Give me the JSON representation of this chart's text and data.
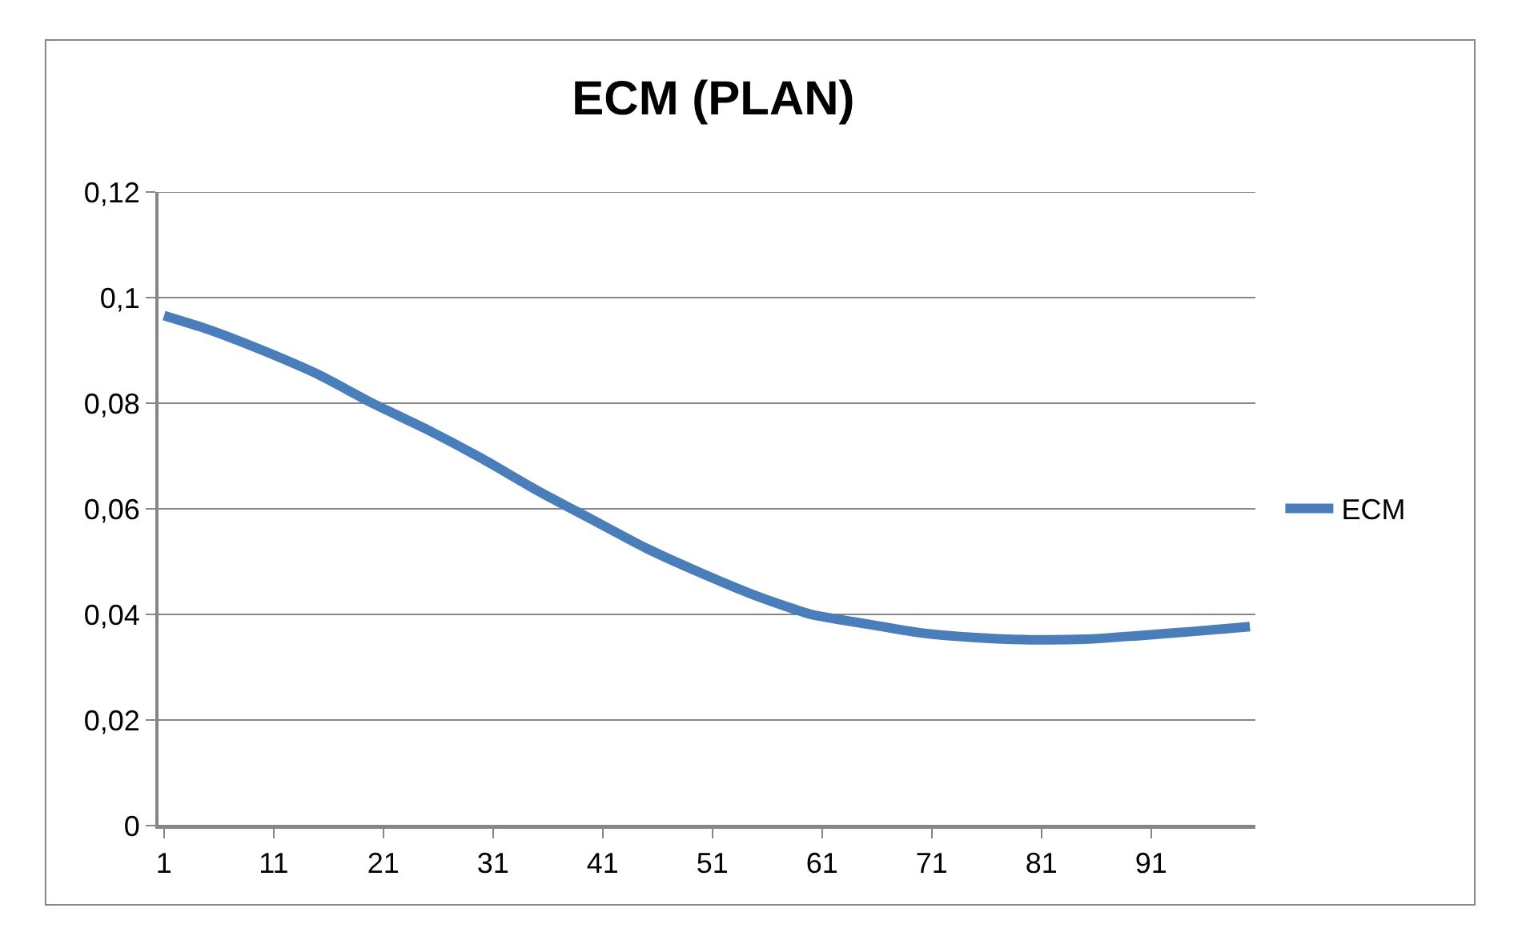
{
  "chart_data": {
    "type": "line",
    "title": "ECM (PLAN)",
    "x": [
      1,
      5,
      10,
      15,
      20,
      25,
      30,
      35,
      40,
      45,
      50,
      55,
      60,
      65,
      70,
      75,
      80,
      85,
      90,
      95,
      100
    ],
    "series": [
      {
        "name": "ECM",
        "color": "#4a7ebb",
        "values": [
          0.0966,
          0.094,
          0.09,
          0.0855,
          0.08,
          0.075,
          0.0695,
          0.0635,
          0.058,
          0.0525,
          0.0478,
          0.0435,
          0.04,
          0.0382,
          0.0365,
          0.0356,
          0.0352,
          0.0353,
          0.036,
          0.0368,
          0.0377
        ]
      }
    ],
    "xlim": [
      0.5,
      100.5
    ],
    "xticks": [
      1,
      11,
      21,
      31,
      41,
      51,
      61,
      71,
      81,
      91
    ],
    "ylim": [
      0,
      0.12
    ],
    "yticks": [
      {
        "value": 0,
        "label": "0"
      },
      {
        "value": 0.02,
        "label": "0,02"
      },
      {
        "value": 0.04,
        "label": "0,04"
      },
      {
        "value": 0.06,
        "label": "0,06"
      },
      {
        "value": 0.08,
        "label": "0,08"
      },
      {
        "value": 0.1,
        "label": "0,1"
      },
      {
        "value": 0.12,
        "label": "0,12"
      }
    ],
    "grid": "y",
    "legend": "right",
    "marker": "none",
    "line_style": "solid"
  }
}
